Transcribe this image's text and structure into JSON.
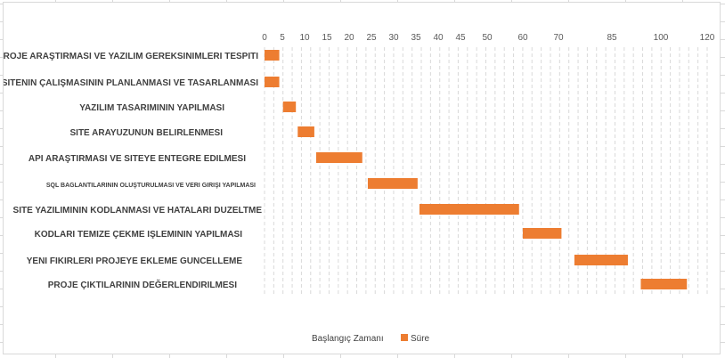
{
  "chart_data": {
    "type": "bar",
    "orientation": "horizontal",
    "stacked": true,
    "categories": [
      "PROJE ARAŞTIRMASI VE YAZILIM GEREKSINIMLERI TESPITI",
      "SITENIN ÇALIŞMASININ PLANLANMASI VE TASARLANMASI",
      "YAZILIM TASARIMININ YAPILMASI",
      "SITE ARAYUZUNUN BELIRLENMESI",
      "API ARAŞTIRMASI VE SITEYE ENTEGRE EDILMESI",
      "SQL BAGLANTILARININ OLUŞTURULMASI VE VERI GIRIŞI YAPILMASI",
      "SITE YAZILIMININ KODLANMASI VE HATALARI DUZELTME",
      "KODLARI TEMIZE ÇEKME IŞLEMININ YAPILMASI",
      "YENI FIKIRLERI PROJEYE EKLEME GUNCELLEME",
      "PROJE ÇIKTILARININ DEĞERLENDIRILMESI"
    ],
    "series": [
      {
        "name": "Başlangıç Zamanı",
        "values": [
          0,
          0,
          5,
          9,
          14,
          28,
          42,
          70,
          84,
          102
        ],
        "color": "none"
      },
      {
        "name": "Süre",
        "values": [
          4,
          4,
          3.5,
          4.5,
          12.5,
          13.5,
          27,
          10.5,
          14.5,
          12.5
        ],
        "color": "#ed7d31"
      }
    ],
    "xticks": [
      0,
      5,
      10,
      15,
      20,
      25,
      30,
      35,
      40,
      45,
      50,
      60,
      70,
      85,
      100,
      120
    ],
    "xlim": [
      0,
      120
    ],
    "grid": "vertical-dashed",
    "legend_position": "bottom"
  },
  "legend": {
    "start_label": "Başlangıç Zamanı",
    "duration_label": "Süre"
  }
}
